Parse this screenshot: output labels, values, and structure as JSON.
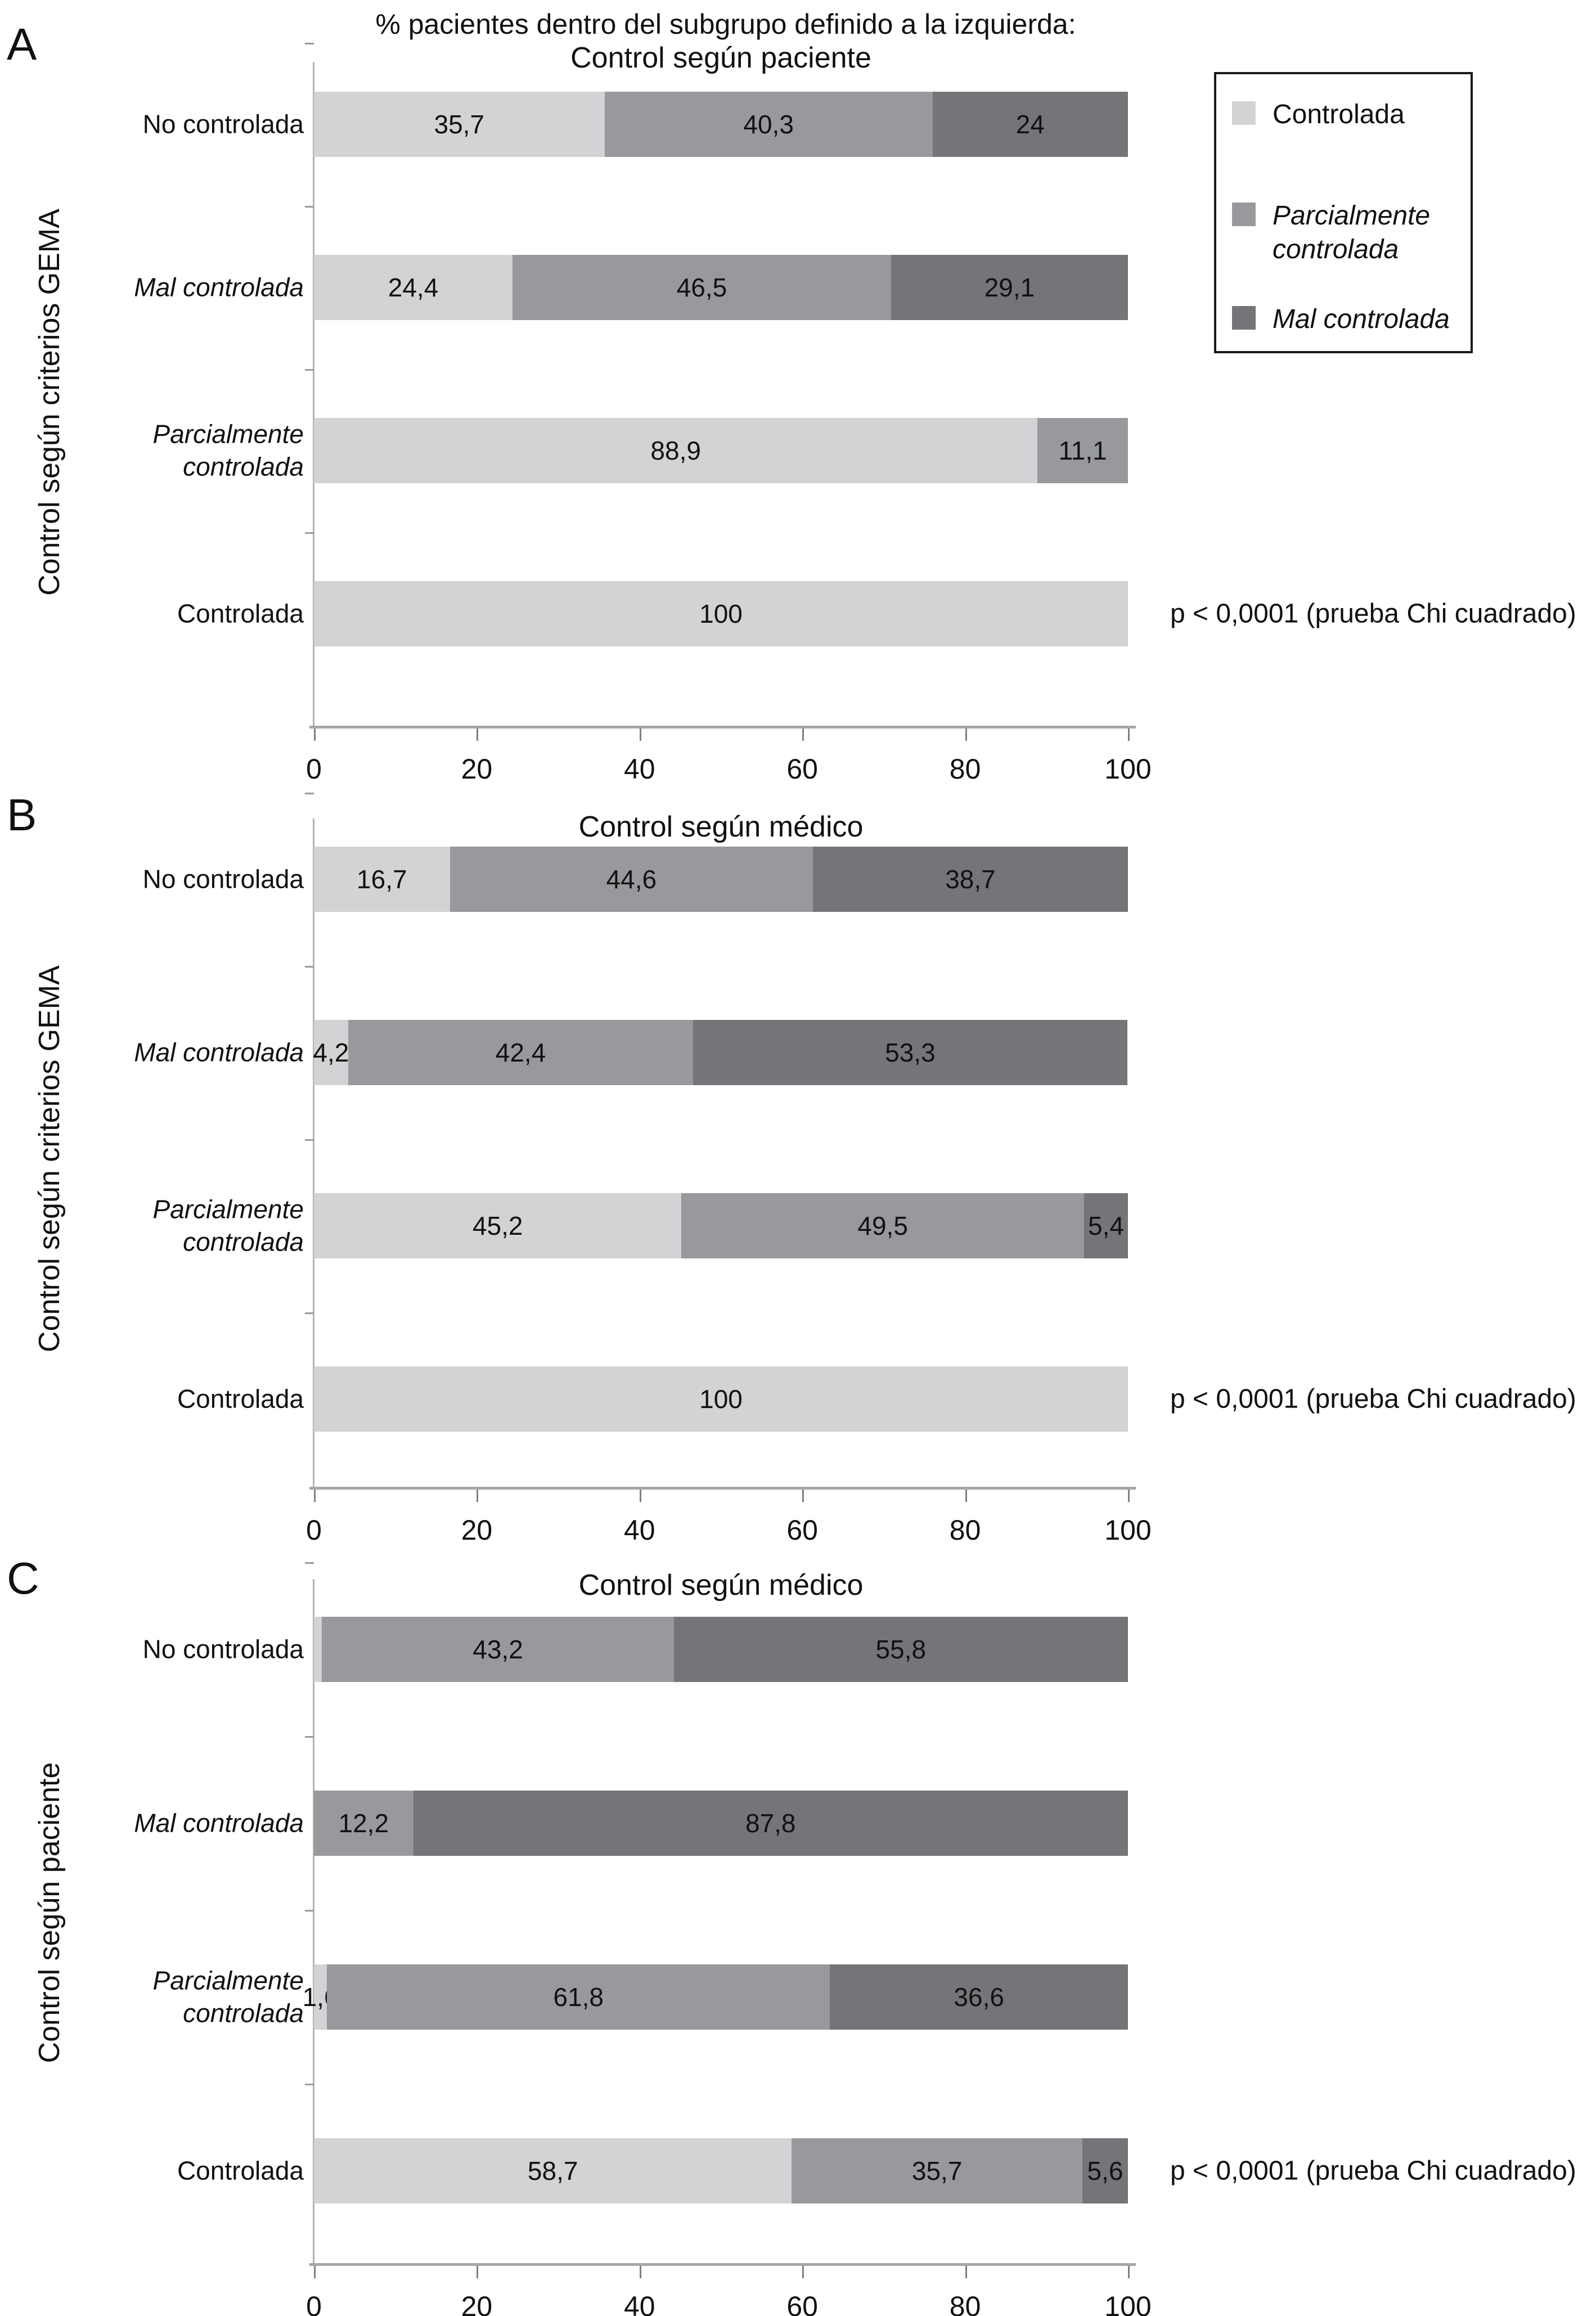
{
  "header": "% pacientes dentro del subgrupo definido a la izquierda:",
  "colors": {
    "controlada": "#d2d3d4",
    "parcialmente_controlada": "#97999c",
    "mal_controlada": "#747578"
  },
  "legend": {
    "items": [
      {
        "label": "Controlada",
        "italic": false,
        "color_key": "controlada"
      },
      {
        "label": "Parcialmente\ncontrolada",
        "italic": true,
        "color_key": "parcialmente_controlada"
      },
      {
        "label": "Mal controlada",
        "italic": true,
        "color_key": "mal_controlada"
      }
    ]
  },
  "chart_data": [
    {
      "type": "bar",
      "orientation": "horizontal",
      "stacked": true,
      "panel_letter": "A",
      "title": "Control según paciente",
      "ylabel": "Control según criterios GEMA",
      "xlim": [
        0,
        100
      ],
      "x_ticks": [
        "0",
        "20",
        "40",
        "60",
        "80",
        "100"
      ],
      "annotation": "p < 0,0001 (prueba Chi cuadrado)",
      "rows": [
        {
          "label": "No controlada",
          "italic": false,
          "segments": [
            {
              "series": "Controlada",
              "color_key": "controlada",
              "value": 35.7,
              "label": "35,7"
            },
            {
              "series": "Parcialmente controlada",
              "color_key": "parcialmente_controlada",
              "value": 40.3,
              "label": "40,3"
            },
            {
              "series": "Mal controlada",
              "color_key": "mal_controlada",
              "value": 24,
              "label": "24"
            }
          ]
        },
        {
          "label": "Mal controlada",
          "italic": true,
          "segments": [
            {
              "series": "Controlada",
              "color_key": "controlada",
              "value": 24.4,
              "label": "24,4"
            },
            {
              "series": "Parcialmente controlada",
              "color_key": "parcialmente_controlada",
              "value": 46.5,
              "label": "46,5"
            },
            {
              "series": "Mal controlada",
              "color_key": "mal_controlada",
              "value": 29.1,
              "label": "29,1"
            }
          ]
        },
        {
          "label": "Parcialmente\ncontrolada",
          "italic": true,
          "segments": [
            {
              "series": "Controlada",
              "color_key": "controlada",
              "value": 88.9,
              "label": "88,9"
            },
            {
              "series": "Parcialmente controlada",
              "color_key": "parcialmente_controlada",
              "value": 11.1,
              "label": "11,1"
            }
          ]
        },
        {
          "label": "Controlada",
          "italic": false,
          "segments": [
            {
              "series": "Controlada",
              "color_key": "controlada",
              "value": 100,
              "label": "100"
            }
          ]
        }
      ]
    },
    {
      "type": "bar",
      "orientation": "horizontal",
      "stacked": true,
      "panel_letter": "B",
      "title": "Control según médico",
      "ylabel": "Control según criterios GEMA",
      "xlim": [
        0,
        100
      ],
      "x_ticks": [
        "0",
        "20",
        "40",
        "60",
        "80",
        "100"
      ],
      "annotation": "p < 0,0001 (prueba Chi cuadrado)",
      "rows": [
        {
          "label": "No controlada",
          "italic": false,
          "segments": [
            {
              "series": "Controlada",
              "color_key": "controlada",
              "value": 16.7,
              "label": "16,7"
            },
            {
              "series": "Parcialmente controlada",
              "color_key": "parcialmente_controlada",
              "value": 44.6,
              "label": "44,6"
            },
            {
              "series": "Mal controlada",
              "color_key": "mal_controlada",
              "value": 38.7,
              "label": "38,7"
            }
          ]
        },
        {
          "label": "Mal controlada",
          "italic": true,
          "segments": [
            {
              "series": "Controlada",
              "color_key": "controlada",
              "value": 4.2,
              "label": "4,2"
            },
            {
              "series": "Parcialmente controlada",
              "color_key": "parcialmente_controlada",
              "value": 42.4,
              "label": "42,4"
            },
            {
              "series": "Mal controlada",
              "color_key": "mal_controlada",
              "value": 53.3,
              "label": "53,3"
            }
          ]
        },
        {
          "label": "Parcialmente\ncontrolada",
          "italic": true,
          "segments": [
            {
              "series": "Controlada",
              "color_key": "controlada",
              "value": 45.2,
              "label": "45,2"
            },
            {
              "series": "Parcialmente controlada",
              "color_key": "parcialmente_controlada",
              "value": 49.5,
              "label": "49,5"
            },
            {
              "series": "Mal controlada",
              "color_key": "mal_controlada",
              "value": 5.4,
              "label": "5,4"
            }
          ]
        },
        {
          "label": "Controlada",
          "italic": false,
          "segments": [
            {
              "series": "Controlada",
              "color_key": "controlada",
              "value": 100,
              "label": "100"
            }
          ]
        }
      ]
    },
    {
      "type": "bar",
      "orientation": "horizontal",
      "stacked": true,
      "panel_letter": "C",
      "title": "Control según médico",
      "ylabel": "Control según paciente",
      "xlim": [
        0,
        100
      ],
      "x_ticks": [
        "0",
        "20",
        "40",
        "60",
        "80",
        "100"
      ],
      "annotation": "p < 0,0001 (prueba Chi cuadrado)",
      "rows": [
        {
          "label": "No controlada",
          "italic": false,
          "segments": [
            {
              "series": "Controlada",
              "color_key": "controlada",
              "value": 1.0,
              "label": ""
            },
            {
              "series": "Parcialmente controlada",
              "color_key": "parcialmente_controlada",
              "value": 43.2,
              "label": "43,2"
            },
            {
              "series": "Mal controlada",
              "color_key": "mal_controlada",
              "value": 55.8,
              "label": "55,8"
            }
          ]
        },
        {
          "label": "Mal controlada",
          "italic": true,
          "segments": [
            {
              "series": "Parcialmente controlada",
              "color_key": "parcialmente_controlada",
              "value": 12.2,
              "label": "12,2"
            },
            {
              "series": "Mal controlada",
              "color_key": "mal_controlada",
              "value": 87.8,
              "label": "87,8"
            }
          ]
        },
        {
          "label": "Parcialmente\ncontrolada",
          "italic": true,
          "segments": [
            {
              "series": "Controlada",
              "color_key": "controlada",
              "value": 1.6,
              "label": "1,6"
            },
            {
              "series": "Parcialmente controlada",
              "color_key": "parcialmente_controlada",
              "value": 61.8,
              "label": "61,8"
            },
            {
              "series": "Mal controlada",
              "color_key": "mal_controlada",
              "value": 36.6,
              "label": "36,6"
            }
          ]
        },
        {
          "label": "Controlada",
          "italic": false,
          "segments": [
            {
              "series": "Controlada",
              "color_key": "controlada",
              "value": 58.7,
              "label": "58,7"
            },
            {
              "series": "Parcialmente controlada",
              "color_key": "parcialmente_controlada",
              "value": 35.7,
              "label": "35,7"
            },
            {
              "series": "Mal controlada",
              "color_key": "mal_controlada",
              "value": 5.6,
              "label": "5,6"
            }
          ]
        }
      ]
    }
  ]
}
